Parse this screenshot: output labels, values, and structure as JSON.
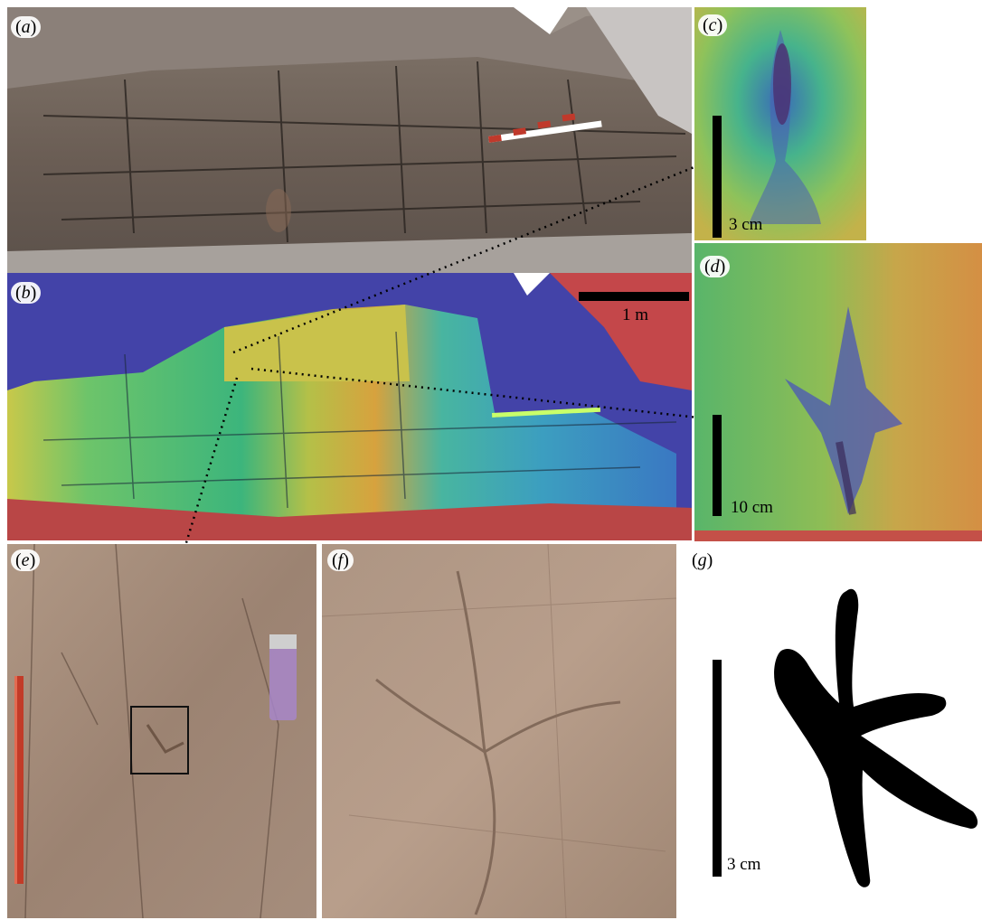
{
  "panels": {
    "a": {
      "label": "a"
    },
    "b": {
      "label": "b",
      "scale_text": "1 m"
    },
    "c": {
      "label": "c",
      "scale_text": "3 cm"
    },
    "d": {
      "label": "d",
      "scale_text": "10 cm"
    },
    "e": {
      "label": "e"
    },
    "f": {
      "label": "f"
    },
    "g": {
      "label": "g",
      "scale_text": "3 cm"
    }
  }
}
